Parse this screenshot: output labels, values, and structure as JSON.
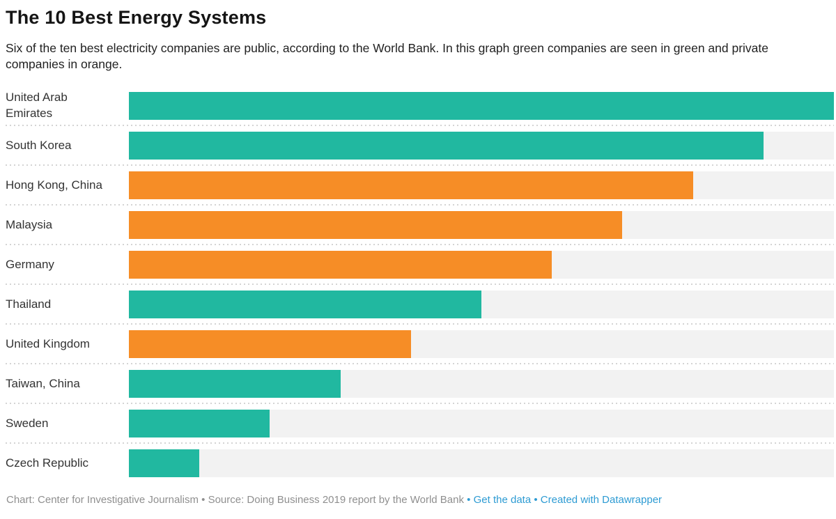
{
  "header": {
    "title": "The 10 Best Energy Systems",
    "description": "Six of the ten best electricity companies are public, according to the World Bank. In this graph green companies are seen in green and private companies in orange."
  },
  "chart_data": {
    "type": "bar",
    "orientation": "horizontal",
    "title": "The 10 Best Energy Systems",
    "categories": [
      "United Arab Emirates",
      "South Korea",
      "Hong Kong, China",
      "Malaysia",
      "Germany",
      "Thailand",
      "United Kingdom",
      "Taiwan, China",
      "Sweden",
      "Czech Republic"
    ],
    "values": [
      10,
      9,
      8,
      7,
      6,
      5,
      4,
      3,
      2,
      1
    ],
    "ownership": [
      "public",
      "public",
      "private",
      "private",
      "private",
      "public",
      "private",
      "public",
      "public",
      "public"
    ],
    "colors": {
      "public": "#21b8a0",
      "private": "#f68d26"
    },
    "track_color": "#f2f2f2",
    "xlim": [
      0,
      10
    ],
    "value_axis_visible": false,
    "grid": false,
    "legend_position": "none (encoded in description: green = public, orange = private)"
  },
  "footer": {
    "credit": "Chart: Center for Investigative Journalism",
    "separator": "•",
    "source": "Source: Doing Business 2019 report by the World Bank",
    "links": [
      {
        "label": "Get the data"
      },
      {
        "label": "Created with Datawrapper"
      }
    ]
  }
}
